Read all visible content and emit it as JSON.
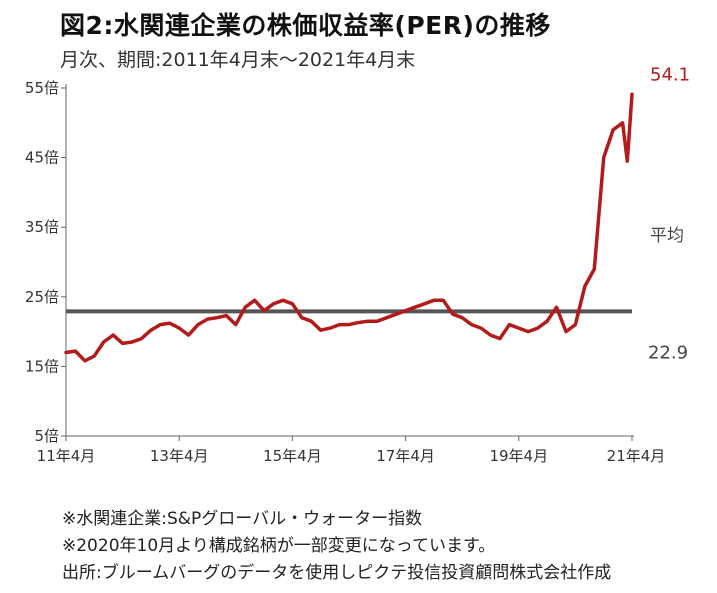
{
  "header": {
    "title": "図2:水関連企業の株価収益率(PER)の推移",
    "subtitle": "月次、期間:2011年4月末～2021年4月末"
  },
  "notes": [
    "※水関連企業:S&Pグローバル・ウォーター指数",
    "※2020年10月より構成銘柄が一部変更になっています。",
    "出所:ブルームバーグのデータを使用しピクテ投信投資顧問株式会社作成"
  ],
  "colors": {
    "series": "#b31b1b",
    "average": "#555555",
    "axis": "#666666"
  },
  "chart_data": {
    "type": "line",
    "title": "図2:水関連企業の株価収益率(PER)の推移",
    "xlabel": "",
    "ylabel": "",
    "ylim": [
      5,
      55
    ],
    "y_ticks": [
      5,
      15,
      25,
      35,
      45,
      55
    ],
    "y_tick_suffix": "倍",
    "x_ticks": [
      "11年4月",
      "13年4月",
      "15年4月",
      "17年4月",
      "19年4月",
      "21年4月"
    ],
    "grid": false,
    "series": [
      {
        "name": "",
        "x": [
          "2011-04",
          "2011-06",
          "2011-08",
          "2011-10",
          "2011-12",
          "2012-02",
          "2012-04",
          "2012-06",
          "2012-08",
          "2012-10",
          "2012-12",
          "2013-02",
          "2013-04",
          "2013-06",
          "2013-08",
          "2013-10",
          "2013-12",
          "2014-02",
          "2014-04",
          "2014-06",
          "2014-08",
          "2014-10",
          "2014-12",
          "2015-02",
          "2015-04",
          "2015-06",
          "2015-08",
          "2015-10",
          "2015-12",
          "2016-02",
          "2016-04",
          "2016-06",
          "2016-08",
          "2016-10",
          "2016-12",
          "2017-02",
          "2017-04",
          "2017-06",
          "2017-08",
          "2017-10",
          "2017-12",
          "2018-02",
          "2018-04",
          "2018-06",
          "2018-08",
          "2018-10",
          "2018-12",
          "2019-02",
          "2019-04",
          "2019-06",
          "2019-08",
          "2019-10",
          "2019-12",
          "2020-02",
          "2020-04",
          "2020-06",
          "2020-08",
          "2020-10",
          "2020-12",
          "2021-02",
          "2021-03",
          "2021-04"
        ],
        "values": [
          17.0,
          17.2,
          15.8,
          16.5,
          18.5,
          19.5,
          18.3,
          18.5,
          19.0,
          20.2,
          21.0,
          21.2,
          20.5,
          19.5,
          21.0,
          21.8,
          22.0,
          22.3,
          21.0,
          23.5,
          24.5,
          23.0,
          24.0,
          24.5,
          24.0,
          22.0,
          21.5,
          20.2,
          20.5,
          21.0,
          21.0,
          21.3,
          21.5,
          21.5,
          22.0,
          22.5,
          23.0,
          23.5,
          24.0,
          24.5,
          24.5,
          22.5,
          22.0,
          21.0,
          20.5,
          19.5,
          19.0,
          21.0,
          20.5,
          20.0,
          20.5,
          21.5,
          23.5,
          20.0,
          21.0,
          26.5,
          29.0,
          45.0,
          49.0,
          50.0,
          44.5,
          54.1
        ],
        "end_label": "54.1"
      }
    ],
    "average": {
      "value": 22.9,
      "label": "平均",
      "value_label": "22.9"
    }
  }
}
